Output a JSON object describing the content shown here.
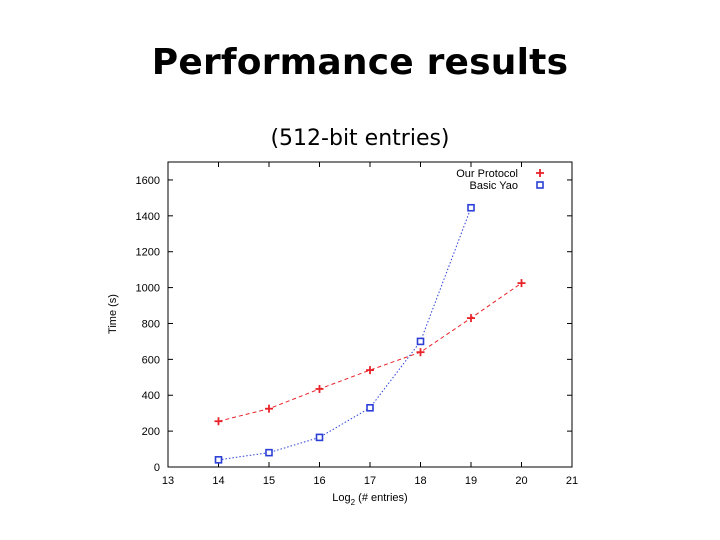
{
  "slide": {
    "title": "Performance results",
    "subtitle": "(512-bit entries)"
  },
  "chart_data": {
    "type": "line",
    "xlabel_main": "Log",
    "xlabel_sub": "2",
    "xlabel_rest": " (# entries)",
    "ylabel": "Time (s)",
    "xlim": [
      13,
      21
    ],
    "ylim": [
      0,
      1700
    ],
    "xticks": [
      13,
      14,
      15,
      16,
      17,
      18,
      19,
      20,
      21
    ],
    "yticks": [
      0,
      200,
      400,
      600,
      800,
      1000,
      1200,
      1400,
      1600
    ],
    "grid": false,
    "legend_position": "top-right",
    "series": [
      {
        "name": "Our Protocol",
        "color": "#e8232a",
        "marker": "plus",
        "line_style": "dashed",
        "x": [
          14,
          15,
          16,
          17,
          18,
          19,
          20
        ],
        "y": [
          255,
          325,
          435,
          540,
          640,
          830,
          1025
        ]
      },
      {
        "name": "Basic Yao",
        "color": "#2b3fd6",
        "marker": "square",
        "line_style": "dotted",
        "x": [
          14,
          15,
          16,
          17,
          18,
          19
        ],
        "y": [
          40,
          80,
          165,
          330,
          700,
          1445
        ]
      }
    ]
  }
}
